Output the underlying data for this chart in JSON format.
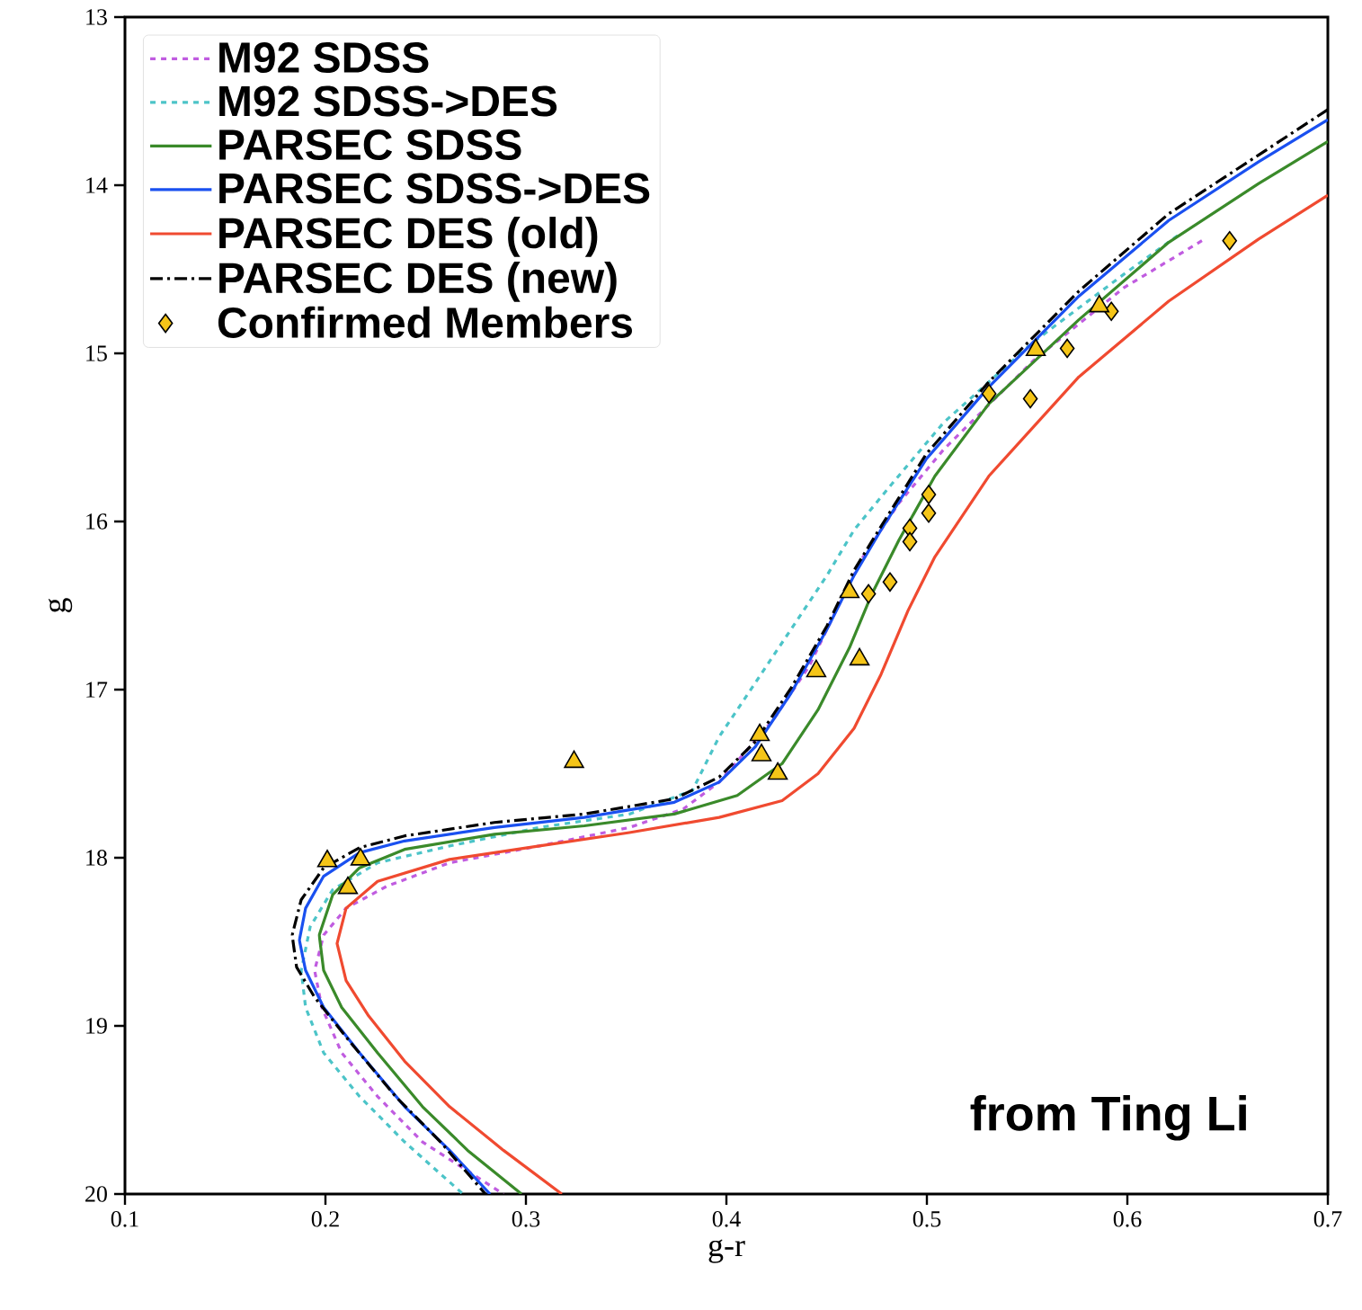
{
  "chart_data": {
    "type": "line",
    "xlabel": "g-r",
    "ylabel": "g",
    "xlim": [
      0.1,
      0.7
    ],
    "ylim": [
      20,
      13
    ],
    "xticks": [
      0.1,
      0.2,
      0.3,
      0.4,
      0.5,
      0.6,
      0.7
    ],
    "yticks": [
      13,
      14,
      15,
      16,
      17,
      18,
      19,
      20
    ],
    "legend": "top left",
    "annotations": [
      "from Ting Li"
    ],
    "series": [
      {
        "name": "M92 SDSS",
        "color": "#c05ce0",
        "line_style": "dashed",
        "x": [
          0.6372,
          0.5982,
          0.5534,
          0.5085,
          0.4861,
          0.4682,
          0.4547,
          0.4413,
          0.4233,
          0.3964,
          0.3785,
          0.3516,
          0.3067,
          0.2619,
          0.2305,
          0.2103,
          0.1991,
          0.1946,
          0.1982,
          0.2081,
          0.226,
          0.2484,
          0.2888
        ],
        "values": [
          14.33,
          14.61,
          15.04,
          15.57,
          15.89,
          16.21,
          16.53,
          16.86,
          17.18,
          17.55,
          17.71,
          17.82,
          17.93,
          18.03,
          18.17,
          18.3,
          18.46,
          18.67,
          18.89,
          19.16,
          19.42,
          19.69,
          20.0
        ]
      },
      {
        "name": "M92 SDSS->DES",
        "color": "#4cc4c8",
        "line_style": "dashed",
        "x": [
          0.6251,
          0.5982,
          0.5534,
          0.5085,
          0.4816,
          0.4637,
          0.4502,
          0.4323,
          0.4144,
          0.3964,
          0.383,
          0.3516,
          0.3067,
          0.2619,
          0.226,
          0.2036,
          0.1924,
          0.1879,
          0.1901,
          0.1991,
          0.217,
          0.2395,
          0.2686
        ],
        "values": [
          14.3,
          14.53,
          14.93,
          15.41,
          15.79,
          16.05,
          16.32,
          16.64,
          16.96,
          17.28,
          17.6,
          17.74,
          17.82,
          17.93,
          18.03,
          18.19,
          18.41,
          18.67,
          18.89,
          19.16,
          19.42,
          19.69,
          20.0
        ]
      },
      {
        "name": "PARSEC SDSS",
        "color": "#3a8a2a",
        "line_style": "solid",
        "x": [
          0.7,
          0.6655,
          0.6206,
          0.5758,
          0.5309,
          0.504,
          0.4861,
          0.4726,
          0.4614,
          0.4457,
          0.4278,
          0.4054,
          0.374,
          0.3291,
          0.2843,
          0.2395,
          0.217,
          0.2036,
          0.1969,
          0.1991,
          0.2081,
          0.226,
          0.2484,
          0.2709,
          0.2978
        ],
        "values": [
          13.74,
          13.99,
          14.34,
          14.8,
          15.3,
          15.73,
          16.11,
          16.43,
          16.75,
          17.12,
          17.44,
          17.63,
          17.74,
          17.81,
          17.86,
          17.95,
          18.06,
          18.22,
          18.46,
          18.67,
          18.89,
          19.16,
          19.48,
          19.74,
          20.0
        ]
      },
      {
        "name": "PARSEC SDSS->DES",
        "color": "#1a50f0",
        "line_style": "solid",
        "x": [
          0.7,
          0.6655,
          0.6206,
          0.5758,
          0.5309,
          0.4996,
          0.4771,
          0.4637,
          0.4502,
          0.4323,
          0.4144,
          0.3964,
          0.374,
          0.3291,
          0.2843,
          0.2395,
          0.217,
          0.1991,
          0.1901,
          0.187,
          0.1901,
          0.1991,
          0.217,
          0.2395,
          0.2619,
          0.2821
        ],
        "values": [
          13.61,
          13.86,
          14.21,
          14.66,
          15.2,
          15.63,
          16.05,
          16.32,
          16.64,
          17.02,
          17.34,
          17.55,
          17.67,
          17.76,
          17.82,
          17.9,
          17.97,
          18.11,
          18.3,
          18.49,
          18.67,
          18.89,
          19.16,
          19.48,
          19.74,
          20.0
        ]
      },
      {
        "name": "PARSEC DES (old)",
        "color": "#f04a30",
        "line_style": "solid",
        "x": [
          0.7,
          0.6655,
          0.6206,
          0.5758,
          0.5309,
          0.504,
          0.4906,
          0.4771,
          0.4637,
          0.4457,
          0.4278,
          0.3964,
          0.3516,
          0.3067,
          0.2619,
          0.226,
          0.2103,
          0.2058,
          0.2103,
          0.2215,
          0.2395,
          0.2619,
          0.2888,
          0.3179
        ],
        "values": [
          14.06,
          14.32,
          14.69,
          15.14,
          15.73,
          16.21,
          16.53,
          16.91,
          17.23,
          17.5,
          17.66,
          17.76,
          17.85,
          17.93,
          18.01,
          18.14,
          18.3,
          18.51,
          18.73,
          18.94,
          19.21,
          19.48,
          19.74,
          20.0
        ]
      },
      {
        "name": "PARSEC DES (new)",
        "color": "#000000",
        "line_style": "dashdot",
        "x": [
          0.7,
          0.6655,
          0.6206,
          0.5758,
          0.5309,
          0.4996,
          0.4771,
          0.4637,
          0.4502,
          0.4323,
          0.4144,
          0.3964,
          0.374,
          0.3291,
          0.2843,
          0.2395,
          0.217,
          0.1991,
          0.1879,
          0.1834,
          0.1856,
          0.1946,
          0.2126,
          0.235,
          0.2574,
          0.2798
        ],
        "values": [
          13.55,
          13.82,
          14.17,
          14.63,
          15.17,
          15.6,
          16.03,
          16.29,
          16.62,
          16.99,
          17.31,
          17.52,
          17.65,
          17.74,
          17.79,
          17.87,
          17.94,
          18.06,
          18.25,
          18.46,
          18.65,
          18.83,
          19.1,
          19.42,
          19.69,
          20.0
        ]
      },
      {
        "name": "Confirmed Members",
        "type": "scatter",
        "marker": "diamond",
        "color": "#f5c518",
        "x": [
          0.651,
          0.592,
          0.57,
          0.531,
          0.5516,
          0.5009,
          0.5009,
          0.4915,
          0.4915,
          0.4816,
          0.4709
        ],
        "values": [
          14.33,
          14.75,
          14.97,
          15.24,
          15.27,
          15.84,
          15.95,
          16.04,
          16.12,
          16.36,
          16.43
        ]
      },
      {
        "type": "scatter",
        "marker": "triangle",
        "color": "#f5c518",
        "x": [
          0.2009,
          0.2175,
          0.2112,
          0.324,
          0.4166,
          0.4175,
          0.4256,
          0.4448,
          0.4664,
          0.4614,
          0.5543,
          0.586
        ],
        "values": [
          18.02,
          18.01,
          18.18,
          17.43,
          17.27,
          17.39,
          17.5,
          16.89,
          16.82,
          16.42,
          14.98,
          14.72
        ]
      }
    ]
  }
}
